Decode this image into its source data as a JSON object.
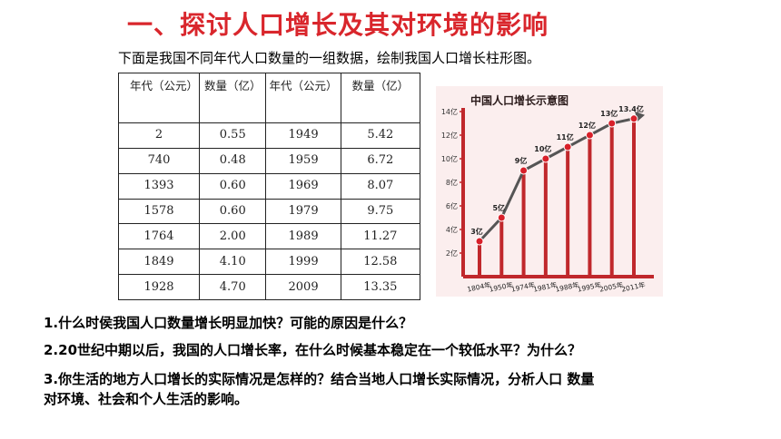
{
  "title": "一、探讨人口增长及其对环境的影响",
  "intro": "下面是我国不同年代人口数量的一组数据，绘制我国人口增长柱形图。",
  "table": {
    "headers": [
      "年代（公元）",
      "数量（亿）",
      "年代（公元）",
      "数量（亿）"
    ],
    "rows": [
      [
        "2",
        "0.55",
        "1949",
        "5.42"
      ],
      [
        "740",
        "0.48",
        "1959",
        "6.72"
      ],
      [
        "1393",
        "0.60",
        "1969",
        "8.07"
      ],
      [
        "1578",
        "0.60",
        "1979",
        "9.75"
      ],
      [
        "1764",
        "2.00",
        "1989",
        "11.27"
      ],
      [
        "1849",
        "4.10",
        "1999",
        "12.58"
      ],
      [
        "1928",
        "4.70",
        "2009",
        "13.35"
      ]
    ]
  },
  "chart_data": {
    "type": "bar",
    "title": "中国人口增长示意图",
    "categories": [
      "1804年",
      "1950年",
      "1974年",
      "1981年",
      "1988年",
      "1995年",
      "2005年",
      "2011年"
    ],
    "values": [
      3,
      5,
      9,
      10,
      11,
      12,
      13,
      13.4
    ],
    "value_labels": [
      "3亿",
      "5亿",
      "9亿",
      "10亿",
      "11亿",
      "12亿",
      "13亿",
      "13.4亿"
    ],
    "ytick_labels": [
      "2亿",
      "4亿",
      "6亿",
      "8亿",
      "10亿",
      "12亿",
      "14亿"
    ],
    "ylim": [
      0,
      14
    ],
    "colors": {
      "bars": "#c0282c",
      "points": "#d8202a",
      "line": "#555555",
      "axis": "#c0282c",
      "background": "#fbeeee"
    }
  },
  "questions": {
    "q1": "1.什么时侯我国人口数量增长明显加快？可能的原因是什么？",
    "q2": "2.20世纪中期以后，我国的人口增长率，在什么时候基本稳定在一个较低水平？为什么？",
    "q3a": "3.你生活的地方人口增长的实际情况是怎样的？结合当地人口增长实际情况，分析人口 数量",
    "q3b": "对环境、社会和个人生活的影响。"
  }
}
